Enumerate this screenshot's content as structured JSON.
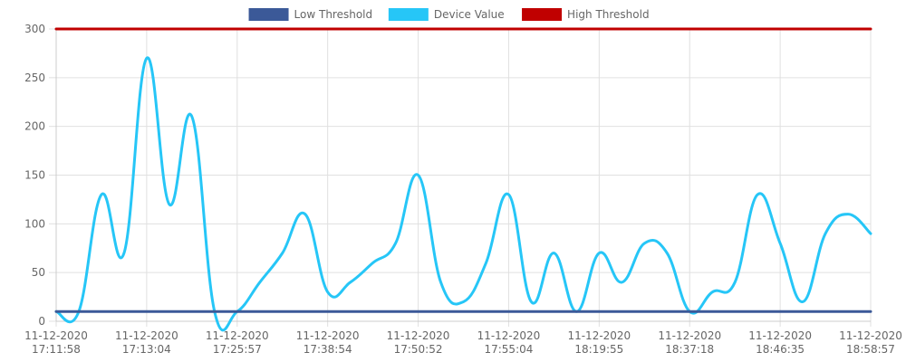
{
  "chart_data": {
    "type": "line",
    "title": "",
    "xlabel": "",
    "ylabel": "",
    "ylim": [
      0,
      300
    ],
    "yticks": [
      0,
      50,
      100,
      150,
      200,
      250,
      300
    ],
    "grid": true,
    "legend_position": "top",
    "x": [
      "11-12-2020 17:11:58",
      "",
      "",
      "",
      "11-12-2020 17:13:04",
      "",
      "",
      "",
      "11-12-2020 17:25:57",
      "",
      "",
      "",
      "11-12-2020 17:38:54",
      "",
      "",
      "",
      "11-12-2020 17:50:52",
      "",
      "",
      "",
      "11-12-2020 17:55:04",
      "",
      "",
      "",
      "11-12-2020 18:19:55",
      "",
      "",
      "",
      "11-12-2020 18:37:18",
      "",
      "",
      "",
      "11-12-2020 18:46:35",
      "",
      "",
      "",
      "11-12-2020 18:58:57"
    ],
    "x_tick_labels": [
      [
        "11-12-2020",
        "17:11:58"
      ],
      [
        "11-12-2020",
        "17:13:04"
      ],
      [
        "11-12-2020",
        "17:25:57"
      ],
      [
        "11-12-2020",
        "17:38:54"
      ],
      [
        "11-12-2020",
        "17:50:52"
      ],
      [
        "11-12-2020",
        "17:55:04"
      ],
      [
        "11-12-2020",
        "18:19:55"
      ],
      [
        "11-12-2020",
        "18:37:18"
      ],
      [
        "11-12-2020",
        "18:46:35"
      ],
      [
        "11-12-2020",
        "18:58:57"
      ]
    ],
    "series": [
      {
        "name": "Low Threshold",
        "color": "#3b5998",
        "values": [
          10,
          10,
          10,
          10,
          10,
          10,
          10,
          10,
          10,
          10,
          10,
          10,
          10,
          10,
          10,
          10,
          10,
          10,
          10,
          10,
          10,
          10,
          10,
          10,
          10,
          10,
          10,
          10,
          10,
          10,
          10,
          10,
          10,
          10,
          10,
          10,
          10
        ]
      },
      {
        "name": "Device Value",
        "color": "#26c6f7",
        "values": [
          10,
          10,
          130,
          70,
          270,
          120,
          210,
          10,
          10,
          40,
          70,
          110,
          30,
          40,
          60,
          80,
          150,
          40,
          20,
          60,
          130,
          20,
          70,
          10,
          70,
          40,
          80,
          70,
          10,
          30,
          40,
          130,
          80,
          20,
          90,
          110,
          90
        ]
      },
      {
        "name": "High Threshold",
        "color": "#c00000",
        "values": [
          300,
          300,
          300,
          300,
          300,
          300,
          300,
          300,
          300,
          300,
          300,
          300,
          300,
          300,
          300,
          300,
          300,
          300,
          300,
          300,
          300,
          300,
          300,
          300,
          300,
          300,
          300,
          300,
          300,
          300,
          300,
          300,
          300,
          300,
          300,
          300,
          300
        ]
      }
    ]
  }
}
